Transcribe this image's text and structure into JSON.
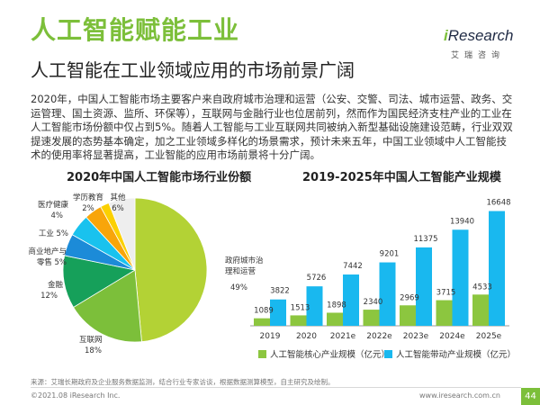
{
  "header": {
    "title": "人工智能赋能工业",
    "subtitle": "人工智能在工业领域应用的市场前景广阔"
  },
  "logo": {
    "brand_prefix": "i",
    "brand_rest": "Research",
    "brand_sub": "艾瑞咨询"
  },
  "body_text": "2020年，中国人工智能市场主要客户来自政府城市治理和运营（公安、交警、司法、城市运营、政务、交运管理、国土资源、监所、环保等），互联网与金融行业也位居前列，然而作为国民经济支柱产业的工业在人工智能市场份额中仅占到5%。随着人工智能与工业互联网共同被纳入新型基础设施建设范畴，行业双双提速发展的态势基本确定，加之工业领域多样化的场景需求，预计未来五年，中国工业领域中人工智能技术的使用率将显著提高，工业智能的应用市场前景将十分广阔。",
  "colors": {
    "brand_green": "#7cbf3a",
    "bar_core": "#8cc63f",
    "bar_driven": "#19b8ef"
  },
  "chart_data": [
    {
      "type": "pie",
      "title": "2020年中国人工智能市场行业份额",
      "slices": [
        {
          "label": "政府城市治理和运营",
          "value": 49,
          "display": "49%",
          "color": "#b3d235"
        },
        {
          "label": "互联网",
          "value": 18,
          "display": "18%",
          "color": "#7cbf3a"
        },
        {
          "label": "金融",
          "value": 12,
          "display": "12%",
          "color": "#16a05a"
        },
        {
          "label": "商业地产与零售",
          "value": 5,
          "display": "5%",
          "color": "#1c8bd8"
        },
        {
          "label": "工业",
          "value": 5,
          "display": "5%",
          "color": "#19c2ee"
        },
        {
          "label": "医疗健康",
          "value": 4,
          "display": "4%",
          "color": "#f8a50a"
        },
        {
          "label": "学历教育",
          "value": 2,
          "display": "2%",
          "color": "#fbd000"
        },
        {
          "label": "其他",
          "value": 6,
          "display": "6%",
          "color": "#eeeeee"
        }
      ]
    },
    {
      "type": "bar",
      "title": "2019-2025年中国人工智能产业规模",
      "categories": [
        "2019",
        "2020",
        "2021e",
        "2022e",
        "2023e",
        "2024e",
        "2025e"
      ],
      "series": [
        {
          "name": "人工智能核心产业规模（亿元）",
          "values": [
            1089,
            1513,
            1898,
            2340,
            2969,
            3715,
            4533
          ],
          "color": "#8cc63f"
        },
        {
          "name": "人工智能带动产业规模（亿元）",
          "values": [
            3822,
            5726,
            7442,
            9201,
            11375,
            13940,
            16648
          ],
          "color": "#19b8ef"
        }
      ],
      "ylim": [
        0,
        17500
      ],
      "grid": false,
      "legend_position": "bottom"
    }
  ],
  "footer": {
    "source": "来源：艾瑞长期政府及企业服务数据监测，结合行业专家访谈，根据数据测算模型，自主研究及绘制。",
    "copyright": "©2021.08 iResearch Inc.",
    "website": "www.iresearch.com.cn",
    "page_number": "44"
  }
}
